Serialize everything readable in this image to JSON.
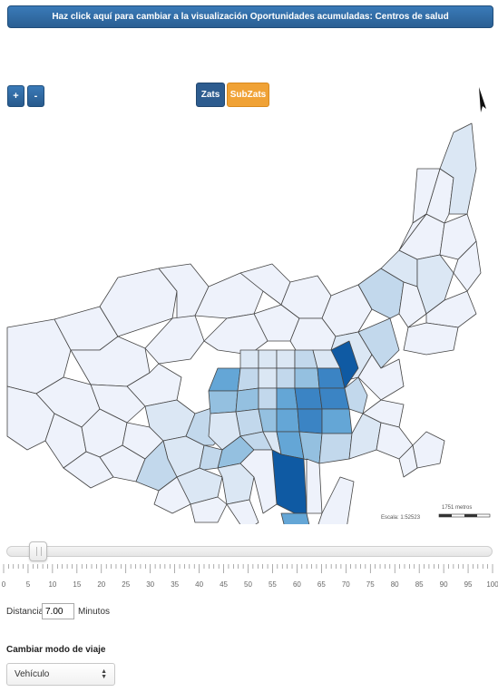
{
  "header": {
    "toggle_label": "Haz click aquí para cambiar a la visualización Oportunidades acumuladas: Centros de salud"
  },
  "map_controls": {
    "zoom_in": "+",
    "zoom_out": "-",
    "layers": [
      {
        "label": "Zats",
        "color": "#2d5c8f",
        "active": true
      },
      {
        "label": "SubZats",
        "color": "#f0a236",
        "active": false
      }
    ]
  },
  "map": {
    "scale_label": "1751 metros",
    "scale_ratio": "Escala: 1:52523",
    "colors": {
      "lightest": "#eef2fb",
      "light": "#dbe7f4",
      "light_mid": "#c2d8ec",
      "mid": "#94c0e0",
      "mid_dark": "#64a6d6",
      "dark": "#3b84c4",
      "darkest": "#0f5aa3",
      "border": "#444444"
    },
    "north_arrow": "north-arrow-icon"
  },
  "slider": {
    "min": 0,
    "max": 100,
    "value": 7,
    "tick_labels": [
      "0",
      "5",
      "10",
      "15",
      "20",
      "25",
      "30",
      "35",
      "40",
      "45",
      "50",
      "55",
      "60",
      "65",
      "70",
      "75",
      "80",
      "85",
      "90",
      "95",
      "100"
    ]
  },
  "distance": {
    "label": "Distancia:",
    "value": "7.00",
    "unit": "Minutos"
  },
  "travel_mode": {
    "label": "Cambiar modo de viaje",
    "selected": "Vehículo"
  }
}
